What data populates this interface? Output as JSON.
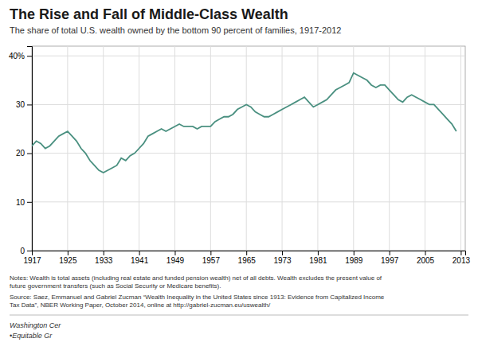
{
  "chart_data": {
    "type": "line",
    "title": "The Rise and Fall of Middle-Class Wealth",
    "subtitle": "The share of total U.S. wealth owned by the bottom 90 percent of families, 1917-2012",
    "annotations": [
      "Notes: Wealth is total assets (including real estate and funded pension wealth) net of all debts. Wealth excludes the present value of",
      "future government transfers (such as Social Security or Medicare benefits).",
      "Source: Saez, Emmanuel and Gabriel Zucman “Wealth Inequality in the United States since 1913: Evidence from Capitalized Income",
      "Tax Data”, NBER Working Paper, October 2014, online at http://gabriel-zucman.eu/uswealth/",
      "Washington Cer",
      "•Equitable Gr"
    ],
    "x": [
      1917,
      1918,
      1919,
      1920,
      1921,
      1922,
      1923,
      1924,
      1925,
      1926,
      1927,
      1928,
      1929,
      1930,
      1931,
      1932,
      1933,
      1934,
      1935,
      1936,
      1937,
      1938,
      1939,
      1940,
      1941,
      1942,
      1943,
      1944,
      1945,
      1946,
      1947,
      1948,
      1949,
      1950,
      1951,
      1952,
      1953,
      1954,
      1955,
      1956,
      1957,
      1958,
      1959,
      1960,
      1961,
      1962,
      1963,
      1964,
      1965,
      1966,
      1967,
      1968,
      1969,
      1970,
      1971,
      1972,
      1973,
      1974,
      1975,
      1976,
      1977,
      1978,
      1979,
      1980,
      1981,
      1982,
      1983,
      1984,
      1985,
      1986,
      1987,
      1988,
      1989,
      1990,
      1991,
      1992,
      1993,
      1994,
      1995,
      1996,
      1997,
      1998,
      1999,
      2000,
      2001,
      2002,
      2003,
      2004,
      2005,
      2006,
      2007,
      2008,
      2009,
      2010,
      2011,
      2012
    ],
    "values": [
      21.5,
      22.5,
      22.0,
      21.0,
      21.5,
      22.5,
      23.5,
      24.0,
      24.5,
      23.5,
      22.5,
      21.0,
      20.0,
      18.5,
      17.5,
      16.5,
      16.0,
      16.5,
      17.0,
      17.5,
      19.0,
      18.5,
      19.5,
      20.0,
      21.0,
      22.0,
      23.5,
      24.0,
      24.5,
      25.0,
      24.5,
      25.0,
      25.5,
      26.0,
      25.5,
      25.5,
      25.5,
      25.0,
      25.5,
      25.5,
      25.5,
      26.5,
      27.0,
      27.5,
      27.5,
      28.0,
      29.0,
      29.5,
      30.0,
      29.5,
      28.5,
      28.0,
      27.5,
      27.5,
      28.0,
      28.5,
      29.0,
      29.5,
      30.0,
      30.5,
      31.0,
      31.5,
      30.5,
      29.5,
      30.0,
      30.5,
      31.0,
      32.0,
      33.0,
      33.5,
      34.0,
      34.5,
      36.5,
      36.0,
      35.5,
      35.0,
      34.0,
      33.5,
      34.0,
      34.0,
      33.0,
      32.0,
      31.0,
      30.5,
      31.5,
      32.0,
      31.5,
      31.0,
      30.5,
      30.0,
      30.0,
      29.0,
      28.0,
      27.0,
      26.0,
      24.5
    ],
    "color": "#4a9080",
    "xlim": [
      1917,
      2014
    ],
    "ylim": [
      0,
      42
    ],
    "xticks": [
      1917,
      1925,
      1933,
      1941,
      1949,
      1957,
      1965,
      1973,
      1981,
      1989,
      1997,
      2005,
      2013
    ],
    "yticks": [
      0,
      10,
      20,
      30,
      {
        "value": 40,
        "label": "40%"
      }
    ],
    "grid": true
  }
}
